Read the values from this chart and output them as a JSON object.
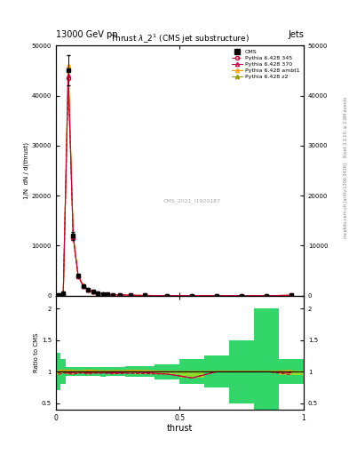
{
  "title_top": "13000 GeV pp",
  "title_right": "Jets",
  "plot_title": "Thrust $\\lambda\\_2^1$ (CMS jet substructure)",
  "watermark": "CMS_2021_I1920187",
  "right_label_top": "Rivet 3.1.10, ≥ 2.8M events",
  "right_label_bot": "mcplots.cern.ch [arXiv:1306.3436]",
  "xlabel": "thrust",
  "ylabel_main": "1/N mathrm{d}N / mathrm{d}(thrust)",
  "ylabel_ratio": "Ratio to CMS",
  "xlim": [
    0.0,
    1.0
  ],
  "ylim_main": [
    0,
    50000
  ],
  "ylim_ratio": [
    0.4,
    2.2
  ],
  "yticks_main": [
    0,
    10000,
    20000,
    30000,
    40000,
    50000
  ],
  "ytick_labels_main": [
    "0",
    "10000",
    "20000",
    "30000",
    "40000",
    "50000"
  ],
  "yticks_ratio": [
    0.5,
    1.0,
    1.5,
    2.0
  ],
  "xticks": [
    0,
    0.5,
    1.0
  ],
  "thrust_bins": [
    0.0,
    0.02,
    0.04,
    0.06,
    0.08,
    0.1,
    0.12,
    0.14,
    0.16,
    0.18,
    0.2,
    0.22,
    0.24,
    0.28,
    0.32,
    0.4,
    0.5,
    0.6,
    0.7,
    0.8,
    0.9,
    1.0
  ],
  "cms_values": [
    100,
    500,
    45000,
    12000,
    4000,
    2000,
    1200,
    800,
    550,
    380,
    270,
    200,
    160,
    100,
    60,
    25,
    10,
    4,
    2,
    1,
    100
  ],
  "cms_errors": [
    30,
    100,
    3000,
    800,
    300,
    150,
    90,
    60,
    40,
    30,
    20,
    15,
    12,
    8,
    5,
    3,
    2,
    1,
    1,
    1,
    20
  ],
  "p345_values": [
    95,
    490,
    43500,
    11500,
    3900,
    1950,
    1150,
    780,
    535,
    370,
    262,
    193,
    155,
    97,
    58,
    24,
    9,
    4,
    2,
    1,
    95
  ],
  "p370_values": [
    98,
    500,
    44000,
    11800,
    3950,
    1975,
    1175,
    790,
    542,
    375,
    265,
    196,
    157,
    99,
    59,
    24,
    9,
    4,
    2,
    1,
    98
  ],
  "pambt1_values": [
    102,
    510,
    46000,
    12200,
    4050,
    2030,
    1230,
    815,
    558,
    385,
    273,
    203,
    162,
    102,
    61,
    25,
    10,
    4,
    2,
    1,
    102
  ],
  "pz2_values": [
    100,
    505,
    45500,
    12050,
    4010,
    2010,
    1210,
    805,
    552,
    382,
    271,
    201,
    161,
    101,
    60,
    25,
    10,
    4,
    2,
    1,
    100
  ],
  "color_cms": "#000000",
  "color_p345": "#cc0033",
  "color_p370": "#cc0044",
  "color_pambt1": "#ff9900",
  "color_pz2": "#999900",
  "bg_color": "#ffffff",
  "ratio_band_green": "#00cc44",
  "ratio_band_yellow": "#ccdd00"
}
